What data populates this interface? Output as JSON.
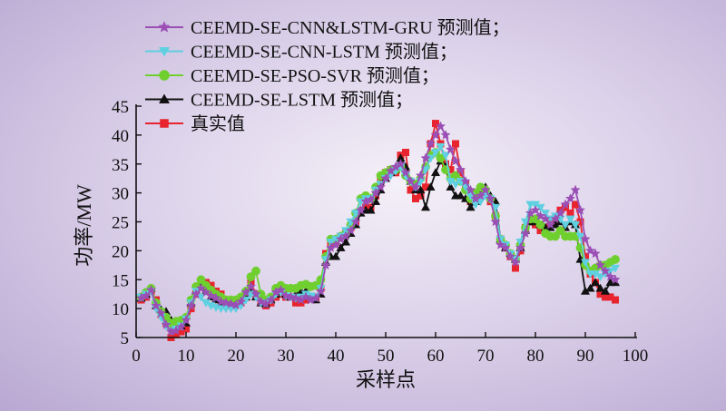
{
  "chart_data": {
    "type": "line",
    "xlabel": "采样点",
    "ylabel": "功率/MW",
    "xlim": [
      0,
      100
    ],
    "ylim": [
      5,
      45
    ],
    "xticks": [
      0,
      10,
      20,
      30,
      40,
      50,
      60,
      70,
      80,
      90,
      100
    ],
    "yticks": [
      5,
      10,
      15,
      20,
      25,
      30,
      35,
      40,
      45
    ],
    "grid": false,
    "legend_position": "top-left",
    "x": [
      1,
      2,
      3,
      4,
      5,
      6,
      7,
      8,
      9,
      10,
      11,
      12,
      13,
      14,
      15,
      16,
      17,
      18,
      19,
      20,
      21,
      22,
      23,
      24,
      25,
      26,
      27,
      28,
      29,
      30,
      31,
      32,
      33,
      34,
      35,
      36,
      37,
      38,
      39,
      40,
      41,
      42,
      43,
      44,
      45,
      46,
      47,
      48,
      49,
      50,
      51,
      52,
      53,
      54,
      55,
      56,
      57,
      58,
      59,
      60,
      61,
      62,
      63,
      64,
      65,
      66,
      67,
      68,
      69,
      70,
      71,
      72,
      73,
      74,
      75,
      76,
      77,
      78,
      79,
      80,
      81,
      82,
      83,
      84,
      85,
      86,
      87,
      88,
      89,
      90,
      91,
      92,
      93,
      94,
      95,
      96
    ],
    "series": [
      {
        "name": "CEEMD-SE-CNN&LSTM-GRU 预测值；",
        "color": "#9b4fb5",
        "marker": "star",
        "values": [
          11.8,
          12.2,
          13.2,
          10.5,
          9.2,
          7.2,
          6.0,
          6.2,
          6.8,
          8.0,
          10.5,
          12.5,
          13.5,
          12.8,
          12.2,
          11.8,
          11.2,
          11.0,
          10.8,
          10.6,
          11.2,
          12.8,
          13.8,
          12.5,
          11.2,
          10.8,
          11.5,
          12.8,
          13.2,
          12.2,
          12.0,
          11.8,
          11.5,
          12.0,
          11.5,
          11.8,
          13.0,
          17.5,
          20.5,
          21.0,
          22.0,
          22.5,
          23.5,
          25.0,
          27.0,
          28.5,
          28.8,
          30.0,
          31.0,
          32.5,
          33.8,
          34.5,
          35.0,
          33.5,
          32.0,
          31.0,
          33.0,
          36.0,
          38.5,
          40.0,
          41.5,
          40.0,
          37.5,
          35.5,
          34.0,
          32.0,
          30.5,
          29.0,
          29.5,
          30.5,
          29.0,
          25.0,
          21.0,
          20.5,
          19.0,
          18.0,
          20.5,
          23.0,
          26.5,
          27.0,
          26.0,
          25.5,
          24.5,
          25.5,
          26.5,
          28.0,
          29.0,
          30.5,
          27.0,
          22.0,
          20.0,
          19.5,
          17.5,
          16.5,
          15.5,
          15.0
        ]
      },
      {
        "name": "CEEMD-SE-CNN-LSTM 预测值；",
        "color": "#5fd0e0",
        "marker": "triangle-down",
        "values": [
          12.0,
          12.5,
          13.0,
          10.0,
          8.5,
          7.0,
          6.2,
          6.5,
          7.0,
          8.2,
          11.0,
          13.0,
          12.0,
          11.0,
          10.5,
          10.2,
          10.0,
          10.0,
          10.0,
          10.0,
          10.5,
          11.5,
          12.5,
          12.0,
          11.0,
          11.0,
          11.5,
          12.5,
          12.8,
          12.2,
          12.0,
          11.8,
          12.0,
          12.5,
          12.2,
          12.0,
          13.5,
          18.5,
          21.5,
          22.0,
          22.5,
          23.5,
          25.0,
          26.5,
          28.5,
          29.0,
          29.0,
          30.5,
          31.5,
          32.5,
          33.0,
          33.8,
          34.5,
          33.0,
          32.0,
          31.0,
          32.0,
          34.0,
          36.0,
          37.0,
          38.0,
          36.5,
          32.0,
          31.5,
          32.0,
          31.0,
          29.5,
          28.0,
          28.5,
          29.5,
          29.0,
          27.5,
          22.0,
          21.0,
          19.5,
          18.5,
          21.5,
          25.0,
          28.0,
          28.0,
          27.5,
          26.5,
          25.5,
          26.0,
          25.5,
          24.5,
          25.5,
          24.5,
          22.5,
          18.0,
          16.0,
          16.0,
          15.5,
          16.0,
          16.5,
          17.0
        ]
      },
      {
        "name": "CEEMD-SE-PSO-SVR 预测值；",
        "color": "#6ecf2e",
        "marker": "circle",
        "values": [
          12.0,
          12.8,
          13.5,
          11.0,
          9.5,
          8.5,
          7.5,
          7.8,
          8.0,
          8.5,
          11.5,
          13.8,
          15.0,
          14.0,
          13.2,
          12.5,
          12.0,
          11.5,
          11.5,
          11.5,
          12.0,
          13.0,
          15.5,
          16.5,
          12.5,
          11.5,
          12.0,
          13.5,
          14.0,
          13.5,
          13.5,
          13.5,
          14.0,
          14.2,
          13.8,
          14.0,
          15.0,
          19.0,
          22.0,
          22.0,
          22.5,
          23.0,
          24.5,
          26.5,
          29.0,
          29.5,
          29.0,
          31.0,
          33.0,
          33.5,
          34.0,
          34.0,
          34.5,
          33.0,
          32.0,
          31.5,
          32.5,
          34.5,
          36.5,
          37.0,
          36.0,
          34.0,
          32.5,
          33.0,
          32.0,
          30.5,
          29.0,
          30.0,
          31.0,
          30.5,
          29.0,
          26.0,
          22.0,
          21.0,
          19.5,
          18.5,
          21.0,
          24.0,
          25.5,
          25.5,
          24.5,
          23.0,
          22.5,
          22.5,
          23.5,
          22.5,
          22.5,
          22.5,
          20.5,
          17.5,
          16.5,
          17.0,
          17.5,
          17.5,
          18.0,
          18.5
        ]
      },
      {
        "name": "CEEMD-SE-LSTM 预测值；",
        "color": "#111111",
        "marker": "triangle-up",
        "values": [
          11.8,
          12.5,
          13.5,
          10.5,
          9.8,
          9.5,
          8.0,
          7.5,
          7.0,
          7.5,
          11.0,
          13.0,
          14.0,
          13.0,
          12.0,
          11.5,
          11.0,
          11.0,
          11.0,
          11.0,
          11.5,
          12.0,
          13.0,
          12.0,
          11.0,
          10.8,
          11.5,
          12.5,
          13.0,
          12.5,
          12.0,
          12.5,
          13.0,
          13.0,
          12.0,
          11.5,
          12.5,
          18.0,
          19.0,
          19.0,
          20.5,
          21.5,
          23.0,
          24.5,
          26.5,
          27.0,
          27.0,
          28.5,
          30.5,
          32.5,
          33.5,
          34.0,
          36.0,
          34.5,
          32.0,
          30.5,
          30.5,
          27.5,
          31.0,
          33.5,
          35.5,
          34.5,
          31.0,
          29.5,
          29.5,
          29.0,
          27.5,
          28.5,
          30.5,
          31.0,
          29.5,
          28.5,
          22.0,
          20.5,
          19.5,
          18.5,
          20.5,
          23.5,
          25.0,
          25.0,
          24.5,
          24.0,
          24.0,
          24.5,
          25.0,
          24.0,
          25.0,
          24.5,
          18.5,
          13.0,
          13.5,
          14.5,
          13.5,
          13.0,
          14.5,
          14.5
        ]
      },
      {
        "name": "真实值",
        "color": "#e8242e",
        "marker": "square",
        "values": [
          11.5,
          12.0,
          13.0,
          11.5,
          9.0,
          7.5,
          5.0,
          5.5,
          6.0,
          6.5,
          10.0,
          12.5,
          14.0,
          14.5,
          14.0,
          13.0,
          12.5,
          11.5,
          11.0,
          10.8,
          11.0,
          12.0,
          14.5,
          12.5,
          11.0,
          10.5,
          11.0,
          12.0,
          12.5,
          12.0,
          12.0,
          11.0,
          11.0,
          11.5,
          11.8,
          12.0,
          13.5,
          19.5,
          21.0,
          21.5,
          22.5,
          23.0,
          24.0,
          25.0,
          27.0,
          27.5,
          27.5,
          29.5,
          32.0,
          33.5,
          34.0,
          33.5,
          36.5,
          37.0,
          30.5,
          29.0,
          29.5,
          31.0,
          38.5,
          42.0,
          38.5,
          35.0,
          34.0,
          38.5,
          33.5,
          31.5,
          28.5,
          30.0,
          30.5,
          30.0,
          28.5,
          26.0,
          22.0,
          20.5,
          19.0,
          17.0,
          20.0,
          24.0,
          25.0,
          24.5,
          23.5,
          24.0,
          25.0,
          25.5,
          27.0,
          27.5,
          26.5,
          28.0,
          25.0,
          19.0,
          16.0,
          14.5,
          12.5,
          12.0,
          12.0,
          11.5
        ]
      }
    ]
  }
}
